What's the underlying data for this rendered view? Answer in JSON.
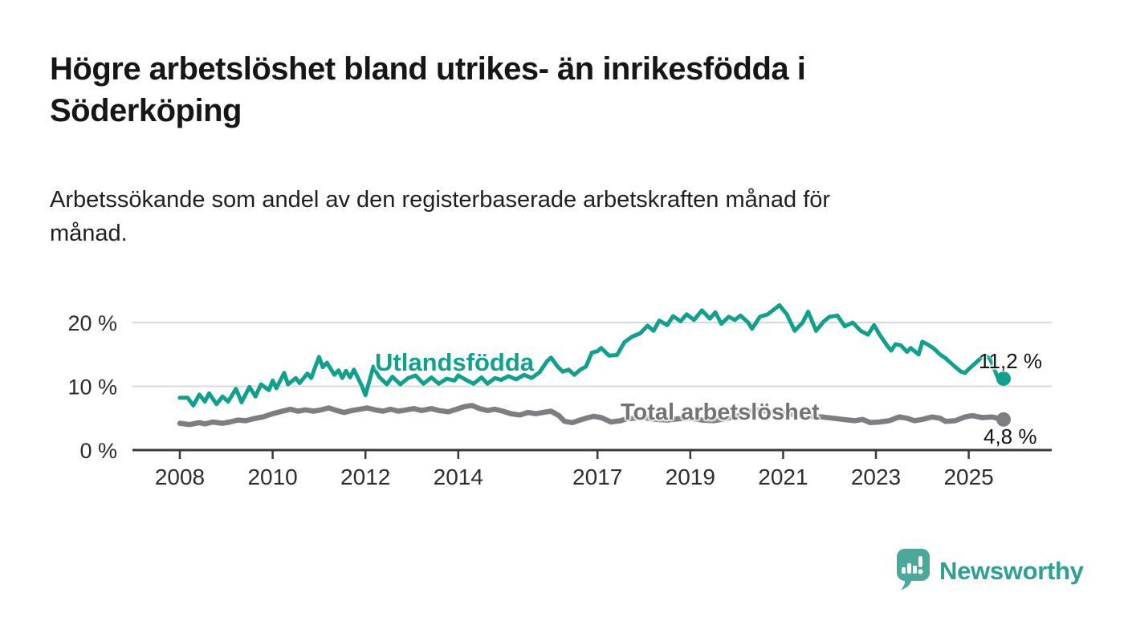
{
  "header": {
    "title": "Högre arbetslöshet bland utrikes- än inrikesfödda i Söderköping",
    "subtitle": "Arbetssökande som andel av den registerbaserade arbetskraften månad för månad."
  },
  "footer": {
    "brand": "Newsworthy"
  },
  "colors": {
    "accent_teal": "#12A08E",
    "line_gray": "#7D7D82",
    "axis": "#3a3a3a",
    "gridline": "#d9d9d9",
    "tick_text": "#2d2d2d",
    "logo_bubble": "#4CA89B",
    "logo_text": "#2da093"
  },
  "chart_data": {
    "type": "line",
    "title": "Högre arbetslöshet bland utrikes- än inrikesfödda i Söderköping",
    "subtitle": "Arbetssökande som andel av den registerbaserade arbetskraften månad för månad.",
    "unit": "%",
    "grid": "horizontal-only",
    "legend_position": "inline-on-line",
    "x_axis": {
      "tick_years": [
        2008,
        2010,
        2012,
        2014,
        2017,
        2019,
        2021,
        2023,
        2025
      ]
    },
    "y_axis": {
      "ticks": [
        {
          "value": 0,
          "label": "0 %"
        },
        {
          "value": 10,
          "label": "10 %"
        },
        {
          "value": 20,
          "label": "20 %"
        }
      ],
      "range": [
        0,
        24.5
      ]
    },
    "series": [
      {
        "name": "Utlandsfödda",
        "color": "#12A08E",
        "stroke_width": 5,
        "end_label": "11,2 %",
        "end_value": 11.2,
        "points": [
          [
            2008.0,
            8.2
          ],
          [
            2008.17,
            8.2
          ],
          [
            2008.29,
            7.0
          ],
          [
            2008.42,
            8.7
          ],
          [
            2008.54,
            7.6
          ],
          [
            2008.63,
            8.9
          ],
          [
            2008.79,
            7.2
          ],
          [
            2008.92,
            8.4
          ],
          [
            2009.04,
            7.6
          ],
          [
            2009.21,
            9.6
          ],
          [
            2009.33,
            7.5
          ],
          [
            2009.5,
            9.9
          ],
          [
            2009.63,
            8.4
          ],
          [
            2009.75,
            10.3
          ],
          [
            2009.92,
            9.4
          ],
          [
            2010.0,
            10.9
          ],
          [
            2010.08,
            9.7
          ],
          [
            2010.25,
            12.1
          ],
          [
            2010.33,
            10.3
          ],
          [
            2010.5,
            11.3
          ],
          [
            2010.58,
            10.5
          ],
          [
            2010.75,
            12.0
          ],
          [
            2010.83,
            11.3
          ],
          [
            2010.92,
            13.1
          ],
          [
            2011.0,
            14.6
          ],
          [
            2011.08,
            13.0
          ],
          [
            2011.17,
            13.7
          ],
          [
            2011.33,
            11.8
          ],
          [
            2011.42,
            12.5
          ],
          [
            2011.5,
            11.3
          ],
          [
            2011.58,
            12.4
          ],
          [
            2011.67,
            11.4
          ],
          [
            2011.75,
            12.6
          ],
          [
            2011.92,
            10.1
          ],
          [
            2012.0,
            8.6
          ],
          [
            2012.17,
            13.1
          ],
          [
            2012.29,
            11.5
          ],
          [
            2012.46,
            10.3
          ],
          [
            2012.58,
            11.5
          ],
          [
            2012.75,
            10.3
          ],
          [
            2012.92,
            11.3
          ],
          [
            2013.08,
            11.7
          ],
          [
            2013.25,
            10.4
          ],
          [
            2013.42,
            11.4
          ],
          [
            2013.58,
            10.4
          ],
          [
            2013.75,
            11.2
          ],
          [
            2013.92,
            10.9
          ],
          [
            2014.0,
            11.7
          ],
          [
            2014.17,
            11.0
          ],
          [
            2014.33,
            10.4
          ],
          [
            2014.5,
            11.4
          ],
          [
            2014.63,
            10.4
          ],
          [
            2014.79,
            11.3
          ],
          [
            2014.92,
            11.0
          ],
          [
            2015.08,
            11.6
          ],
          [
            2015.25,
            11.1
          ],
          [
            2015.42,
            11.8
          ],
          [
            2015.58,
            11.3
          ],
          [
            2015.75,
            12.2
          ],
          [
            2015.92,
            14.0
          ],
          [
            2016.0,
            14.5
          ],
          [
            2016.13,
            13.2
          ],
          [
            2016.25,
            12.3
          ],
          [
            2016.38,
            12.6
          ],
          [
            2016.5,
            11.8
          ],
          [
            2016.63,
            12.6
          ],
          [
            2016.75,
            13.1
          ],
          [
            2016.88,
            15.3
          ],
          [
            2017.0,
            15.5
          ],
          [
            2017.08,
            16.0
          ],
          [
            2017.25,
            14.8
          ],
          [
            2017.42,
            14.9
          ],
          [
            2017.58,
            16.9
          ],
          [
            2017.75,
            17.8
          ],
          [
            2017.92,
            18.3
          ],
          [
            2018.08,
            19.5
          ],
          [
            2018.21,
            18.7
          ],
          [
            2018.33,
            20.3
          ],
          [
            2018.5,
            19.6
          ],
          [
            2018.63,
            21.0
          ],
          [
            2018.79,
            20.2
          ],
          [
            2018.92,
            21.3
          ],
          [
            2019.08,
            20.4
          ],
          [
            2019.25,
            21.9
          ],
          [
            2019.42,
            20.6
          ],
          [
            2019.54,
            21.6
          ],
          [
            2019.67,
            19.8
          ],
          [
            2019.83,
            20.9
          ],
          [
            2019.96,
            20.4
          ],
          [
            2020.08,
            21.1
          ],
          [
            2020.25,
            20.0
          ],
          [
            2020.33,
            19.0
          ],
          [
            2020.5,
            20.9
          ],
          [
            2020.67,
            21.3
          ],
          [
            2020.92,
            22.7
          ],
          [
            2021.08,
            21.3
          ],
          [
            2021.25,
            18.7
          ],
          [
            2021.42,
            20.0
          ],
          [
            2021.54,
            21.7
          ],
          [
            2021.71,
            18.7
          ],
          [
            2021.88,
            20.2
          ],
          [
            2022.0,
            20.9
          ],
          [
            2022.17,
            21.1
          ],
          [
            2022.33,
            19.4
          ],
          [
            2022.5,
            20.0
          ],
          [
            2022.67,
            18.7
          ],
          [
            2022.83,
            18.1
          ],
          [
            2022.96,
            19.6
          ],
          [
            2023.08,
            18.1
          ],
          [
            2023.25,
            16.3
          ],
          [
            2023.33,
            15.6
          ],
          [
            2023.42,
            16.6
          ],
          [
            2023.54,
            16.4
          ],
          [
            2023.67,
            15.4
          ],
          [
            2023.75,
            16.0
          ],
          [
            2023.92,
            15.0
          ],
          [
            2024.0,
            17.0
          ],
          [
            2024.13,
            16.5
          ],
          [
            2024.25,
            15.9
          ],
          [
            2024.38,
            15.0
          ],
          [
            2024.5,
            14.4
          ],
          [
            2024.67,
            13.3
          ],
          [
            2024.83,
            12.3
          ],
          [
            2024.92,
            12.1
          ],
          [
            2025.0,
            12.7
          ],
          [
            2025.17,
            13.8
          ],
          [
            2025.29,
            14.6
          ],
          [
            2025.38,
            14.7
          ],
          [
            2025.46,
            14.3
          ],
          [
            2025.54,
            12.9
          ],
          [
            2025.63,
            11.3
          ],
          [
            2025.67,
            11.7
          ],
          [
            2025.75,
            11.2
          ]
        ]
      },
      {
        "name": "Total arbetslöshet",
        "color": "#7D7D82",
        "stroke_width": 6.5,
        "end_label": "4,8 %",
        "end_value": 4.8,
        "points": [
          [
            2008.0,
            4.2
          ],
          [
            2008.21,
            4.0
          ],
          [
            2008.42,
            4.3
          ],
          [
            2008.54,
            4.1
          ],
          [
            2008.71,
            4.4
          ],
          [
            2008.92,
            4.2
          ],
          [
            2009.08,
            4.4
          ],
          [
            2009.25,
            4.7
          ],
          [
            2009.42,
            4.6
          ],
          [
            2009.58,
            4.9
          ],
          [
            2009.79,
            5.2
          ],
          [
            2010.0,
            5.7
          ],
          [
            2010.21,
            6.1
          ],
          [
            2010.38,
            6.4
          ],
          [
            2010.54,
            6.1
          ],
          [
            2010.71,
            6.3
          ],
          [
            2010.88,
            6.1
          ],
          [
            2011.04,
            6.3
          ],
          [
            2011.21,
            6.6
          ],
          [
            2011.38,
            6.2
          ],
          [
            2011.54,
            5.9
          ],
          [
            2011.71,
            6.2
          ],
          [
            2011.88,
            6.4
          ],
          [
            2012.04,
            6.6
          ],
          [
            2012.21,
            6.3
          ],
          [
            2012.38,
            6.1
          ],
          [
            2012.54,
            6.4
          ],
          [
            2012.71,
            6.1
          ],
          [
            2012.88,
            6.3
          ],
          [
            2013.04,
            6.5
          ],
          [
            2013.21,
            6.2
          ],
          [
            2013.42,
            6.5
          ],
          [
            2013.58,
            6.2
          ],
          [
            2013.79,
            6.0
          ],
          [
            2013.96,
            6.4
          ],
          [
            2014.13,
            6.8
          ],
          [
            2014.29,
            7.0
          ],
          [
            2014.46,
            6.5
          ],
          [
            2014.63,
            6.2
          ],
          [
            2014.79,
            6.4
          ],
          [
            2014.96,
            6.1
          ],
          [
            2015.13,
            5.7
          ],
          [
            2015.33,
            5.5
          ],
          [
            2015.5,
            5.9
          ],
          [
            2015.67,
            5.7
          ],
          [
            2015.83,
            5.9
          ],
          [
            2016.0,
            6.1
          ],
          [
            2016.17,
            5.4
          ],
          [
            2016.29,
            4.5
          ],
          [
            2016.46,
            4.3
          ],
          [
            2016.58,
            4.6
          ],
          [
            2016.75,
            5.0
          ],
          [
            2016.92,
            5.3
          ],
          [
            2017.08,
            5.1
          ],
          [
            2017.29,
            4.4
          ],
          [
            2017.5,
            4.6
          ],
          [
            2017.63,
            4.9
          ],
          [
            2017.79,
            5.0
          ],
          [
            2018.0,
            5.1
          ],
          [
            2018.25,
            4.8
          ],
          [
            2018.5,
            4.7
          ],
          [
            2018.75,
            4.9
          ],
          [
            2019.0,
            5.0
          ],
          [
            2019.25,
            4.7
          ],
          [
            2019.5,
            4.6
          ],
          [
            2019.75,
            4.9
          ],
          [
            2020.0,
            5.3
          ],
          [
            2020.25,
            6.0
          ],
          [
            2020.42,
            6.3
          ],
          [
            2020.63,
            6.1
          ],
          [
            2020.83,
            5.9
          ],
          [
            2021.08,
            5.7
          ],
          [
            2021.33,
            5.5
          ],
          [
            2021.58,
            5.3
          ],
          [
            2021.83,
            5.2
          ],
          [
            2022.08,
            5.0
          ],
          [
            2022.29,
            4.8
          ],
          [
            2022.54,
            4.6
          ],
          [
            2022.71,
            4.8
          ],
          [
            2022.88,
            4.3
          ],
          [
            2023.08,
            4.4
          ],
          [
            2023.29,
            4.6
          ],
          [
            2023.5,
            5.2
          ],
          [
            2023.67,
            5.0
          ],
          [
            2023.83,
            4.6
          ],
          [
            2024.0,
            4.8
          ],
          [
            2024.21,
            5.2
          ],
          [
            2024.38,
            5.0
          ],
          [
            2024.5,
            4.5
          ],
          [
            2024.71,
            4.6
          ],
          [
            2024.92,
            5.2
          ],
          [
            2025.08,
            5.4
          ],
          [
            2025.29,
            5.1
          ],
          [
            2025.5,
            5.2
          ],
          [
            2025.63,
            5.0
          ],
          [
            2025.75,
            4.8
          ]
        ]
      }
    ]
  }
}
